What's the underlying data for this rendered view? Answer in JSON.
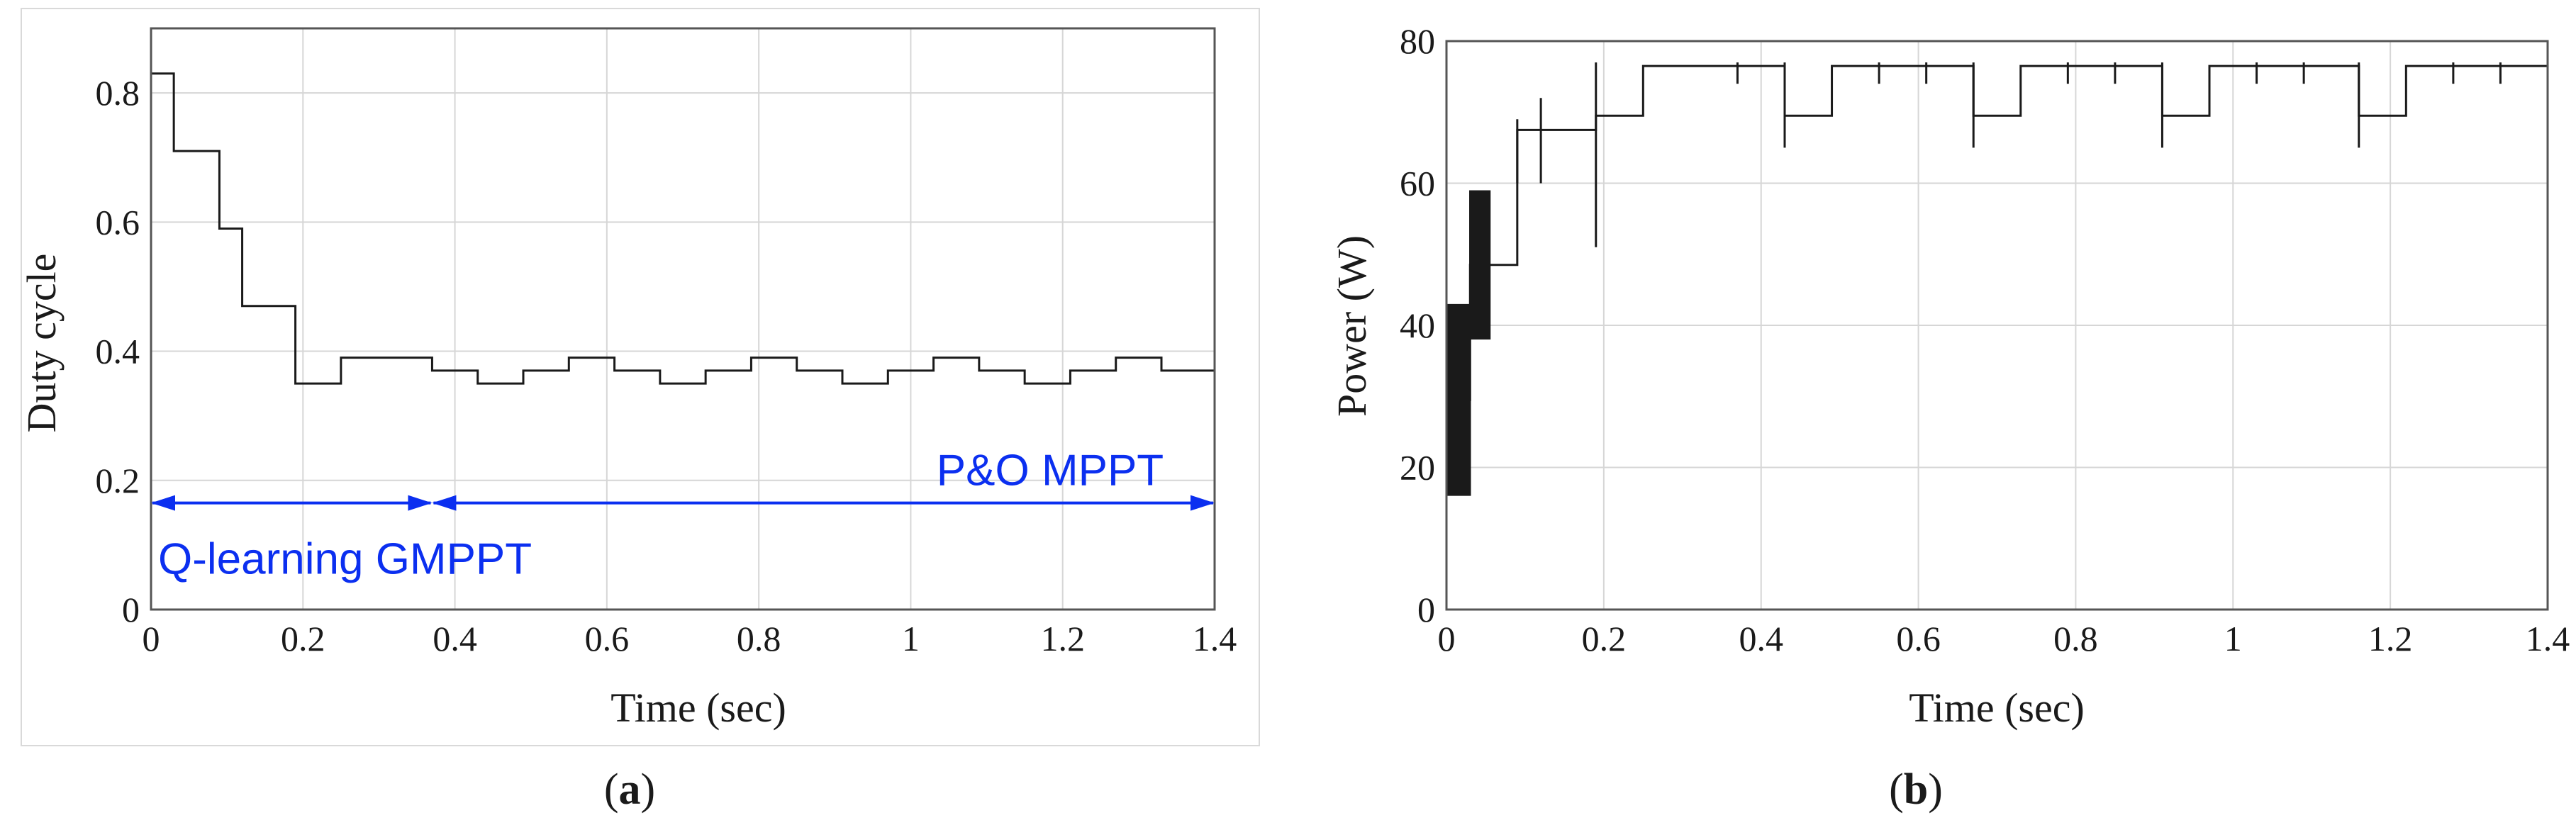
{
  "colors": {
    "annotation": "#0b2ff0",
    "trace": "#1a1a1a"
  },
  "chart_data": [
    {
      "id": "a",
      "type": "line",
      "caption_letter": "a",
      "xlabel": "Time (sec)",
      "ylabel": "Duty cycle",
      "xlim": [
        0,
        1.4
      ],
      "ylim": [
        0,
        0.9
      ],
      "xticks": [
        0,
        0.2,
        0.4,
        0.6,
        0.8,
        1,
        1.2,
        1.4
      ],
      "xtick_labels": [
        "0",
        "0.2",
        "0.4",
        "0.6",
        "0.8",
        "1",
        "1.2",
        "1.4"
      ],
      "yticks": [
        0,
        0.2,
        0.4,
        0.6,
        0.8
      ],
      "ytick_labels": [
        "0",
        "0.2",
        "0.4",
        "0.6",
        "0.8"
      ],
      "grid": true,
      "series": [
        {
          "name": "Duty cycle",
          "style": "step",
          "x": [
            0,
            0.03,
            0.09,
            0.12,
            0.19,
            0.25,
            0.37,
            0.43,
            0.49,
            0.55,
            0.61,
            0.67,
            0.73,
            0.79,
            0.85,
            0.91,
            0.97,
            1.03,
            1.09,
            1.15,
            1.21,
            1.27,
            1.33,
            1.4
          ],
          "y": [
            0.83,
            0.71,
            0.59,
            0.47,
            0.35,
            0.39,
            0.37,
            0.35,
            0.37,
            0.39,
            0.37,
            0.35,
            0.37,
            0.39,
            0.37,
            0.35,
            0.37,
            0.39,
            0.37,
            0.35,
            0.37,
            0.39,
            0.37,
            0.37
          ]
        }
      ],
      "annotations": [
        {
          "text": "Q-learning GMPPT",
          "x_start": 0,
          "x_end": 0.37,
          "y": 0.165
        },
        {
          "text": "P&O MPPT",
          "x_start": 0.37,
          "x_end": 1.4,
          "y": 0.165
        }
      ]
    },
    {
      "id": "b",
      "type": "line",
      "caption_letter": "b",
      "xlabel": "Time (sec)",
      "ylabel": "Power (W)",
      "xlim": [
        0,
        1.4
      ],
      "ylim": [
        0,
        80
      ],
      "xticks": [
        0,
        0.2,
        0.4,
        0.6,
        0.8,
        1,
        1.2,
        1.4
      ],
      "xtick_labels": [
        "0",
        "0.2",
        "0.4",
        "0.6",
        "0.8",
        "1",
        "1.2",
        "1.4"
      ],
      "yticks": [
        0,
        20,
        40,
        60,
        80
      ],
      "ytick_labels": [
        "0",
        "20",
        "40",
        "60",
        "80"
      ],
      "grid": true,
      "series": [
        {
          "name": "Power",
          "style": "step",
          "x": [
            0,
            0.03,
            0.09,
            0.12,
            0.19,
            0.25,
            0.43,
            0.49,
            0.67,
            0.73,
            0.91,
            0.97,
            1.16,
            1.22,
            1.4
          ],
          "y": [
            29.5,
            48.5,
            67.5,
            67.5,
            69.5,
            76.5,
            69.5,
            76.5,
            69.5,
            76.5,
            69.5,
            76.5,
            69.5,
            76.5,
            76.5
          ]
        }
      ],
      "oscillation": {
        "x_start": 0,
        "x_end": 0.03,
        "y_min": 16,
        "y_max": 43
      },
      "oscillation2": {
        "x_start": 0.03,
        "x_end": 0.055,
        "y_min": 38,
        "y_max": 59
      },
      "spikes": [
        {
          "x": 0.09,
          "y_min": 60,
          "y_max": 69
        },
        {
          "x": 0.12,
          "y_min": 60,
          "y_max": 72
        },
        {
          "x": 0.19,
          "y_min": 51,
          "y_max": 77
        },
        {
          "x": 0.43,
          "y_min": 65,
          "y_max": 77
        },
        {
          "x": 0.67,
          "y_min": 65,
          "y_max": 77
        },
        {
          "x": 0.91,
          "y_min": 65,
          "y_max": 77
        },
        {
          "x": 1.16,
          "y_min": 65,
          "y_max": 77
        },
        {
          "x": 0.37,
          "y_min": 74,
          "y_max": 77
        },
        {
          "x": 0.55,
          "y_min": 74,
          "y_max": 77
        },
        {
          "x": 0.61,
          "y_min": 74,
          "y_max": 77
        },
        {
          "x": 0.79,
          "y_min": 74,
          "y_max": 77
        },
        {
          "x": 0.85,
          "y_min": 74,
          "y_max": 77
        },
        {
          "x": 1.03,
          "y_min": 74,
          "y_max": 77
        },
        {
          "x": 1.09,
          "y_min": 74,
          "y_max": 77
        },
        {
          "x": 1.28,
          "y_min": 74,
          "y_max": 77
        },
        {
          "x": 1.34,
          "y_min": 74,
          "y_max": 77
        }
      ]
    }
  ]
}
